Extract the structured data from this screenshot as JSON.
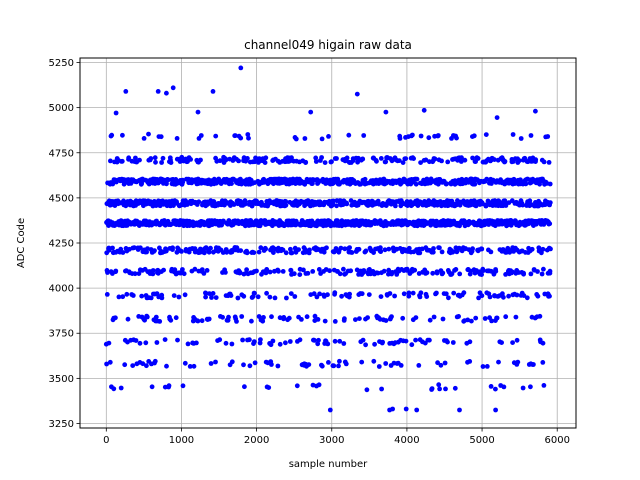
{
  "chart_data": {
    "type": "scatter",
    "title": "channel049 higain raw data",
    "xlabel": "sample number",
    "ylabel": "ADC Code",
    "xlim": [
      -350,
      6250
    ],
    "ylim": [
      3225,
      5275
    ],
    "xticks": [
      0,
      1000,
      2000,
      3000,
      4000,
      5000,
      6000
    ],
    "yticks": [
      3250,
      3500,
      3750,
      4000,
      4250,
      4500,
      4750,
      5000,
      5250
    ],
    "grid": true,
    "marker_color": "#0000ff",
    "sample_range": [
      0,
      5910
    ],
    "levels": [
      {
        "adc": 4360,
        "fraction": 0.26
      },
      {
        "adc": 4470,
        "fraction": 0.2
      },
      {
        "adc": 4590,
        "fraction": 0.18
      },
      {
        "adc": 4710,
        "fraction": 0.08
      },
      {
        "adc": 4210,
        "fraction": 0.09
      },
      {
        "adc": 4090,
        "fraction": 0.07
      },
      {
        "adc": 3960,
        "fraction": 0.04
      },
      {
        "adc": 3830,
        "fraction": 0.035
      },
      {
        "adc": 3700,
        "fraction": 0.025
      },
      {
        "adc": 3580,
        "fraction": 0.02
      },
      {
        "adc": 3450,
        "fraction": 0.012
      },
      {
        "adc": 4840,
        "fraction": 0.02
      }
    ],
    "outliers": [
      {
        "x": 1790,
        "y": 5220
      },
      {
        "x": 260,
        "y": 5090
      },
      {
        "x": 690,
        "y": 5090
      },
      {
        "x": 800,
        "y": 5080
      },
      {
        "x": 890,
        "y": 5110
      },
      {
        "x": 1420,
        "y": 5090
      },
      {
        "x": 3340,
        "y": 5075
      },
      {
        "x": 5710,
        "y": 4980
      },
      {
        "x": 4230,
        "y": 4985
      },
      {
        "x": 130,
        "y": 4970
      },
      {
        "x": 5200,
        "y": 4945
      },
      {
        "x": 1220,
        "y": 4975
      },
      {
        "x": 2720,
        "y": 4975
      },
      {
        "x": 3720,
        "y": 4975
      },
      {
        "x": 2980,
        "y": 3325
      },
      {
        "x": 3770,
        "y": 3325
      },
      {
        "x": 3810,
        "y": 3330
      },
      {
        "x": 3990,
        "y": 3330
      },
      {
        "x": 4130,
        "y": 3325
      },
      {
        "x": 4700,
        "y": 3325
      },
      {
        "x": 5180,
        "y": 3325
      }
    ]
  }
}
